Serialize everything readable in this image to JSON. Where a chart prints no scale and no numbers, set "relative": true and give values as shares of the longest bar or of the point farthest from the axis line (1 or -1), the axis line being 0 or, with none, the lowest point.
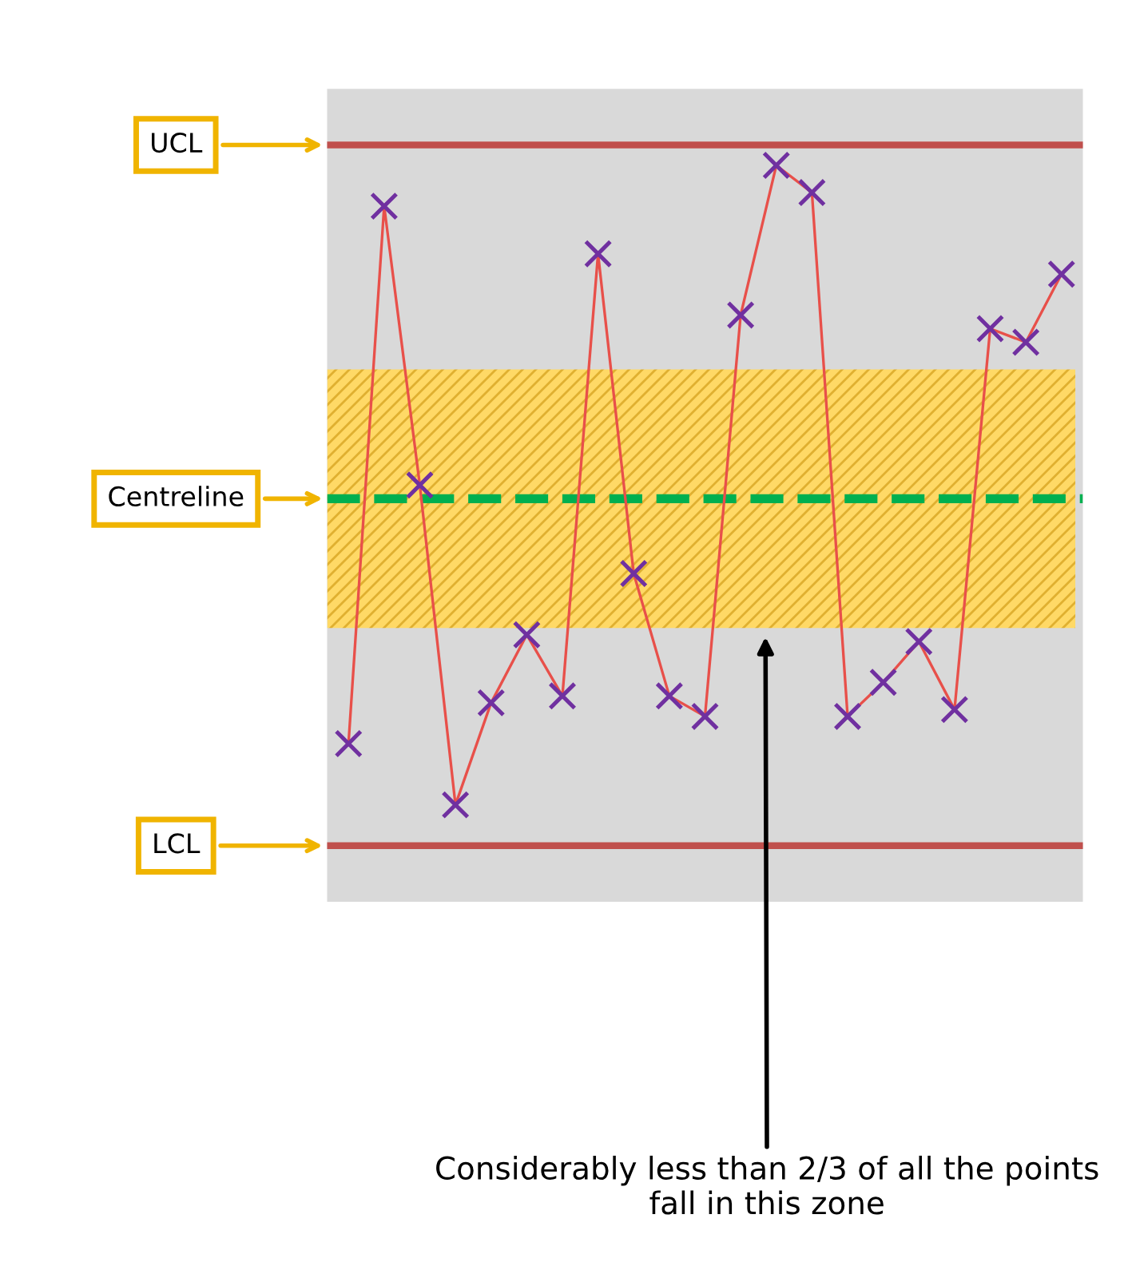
{
  "chart_data": {
    "type": "line",
    "relative": true,
    "categories": [
      null,
      null,
      null,
      null,
      null,
      null,
      null,
      null,
      null,
      null,
      null,
      null,
      null,
      null,
      null,
      null,
      null,
      null,
      null,
      null,
      null
    ],
    "series": [
      {
        "color": "#e8504a",
        "values": [
          0.15,
          0.94,
          0.53,
          0.06,
          0.21,
          0.31,
          0.22,
          0.87,
          0.4,
          0.22,
          0.19,
          0.78,
          1,
          0.96,
          0.19,
          0.24,
          0.3,
          0.2,
          0.76,
          0.74,
          0.84
        ]
      }
    ],
    "marker": "cross",
    "line_style": "solid",
    "grid": false,
    "legend": false,
    "ref_lines": [
      {
        "axis": "y",
        "value": 1.03,
        "label": "UCL",
        "color": "#c0504d",
        "line_style": "solid"
      },
      {
        "axis": "y",
        "value": 0.51,
        "label": "Centreline",
        "color": "#00b050",
        "line_style": "dashed"
      },
      {
        "axis": "y",
        "value": 0,
        "label": "LCL",
        "color": "#c0504d",
        "line_style": "solid"
      }
    ],
    "bands": [
      {
        "axis": "y",
        "from": 0.32,
        "to": 0.7,
        "color": "#ffd966"
      }
    ],
    "annotations": [
      "Considerably less than 2/3 of all the points fall in this zone"
    ]
  }
}
